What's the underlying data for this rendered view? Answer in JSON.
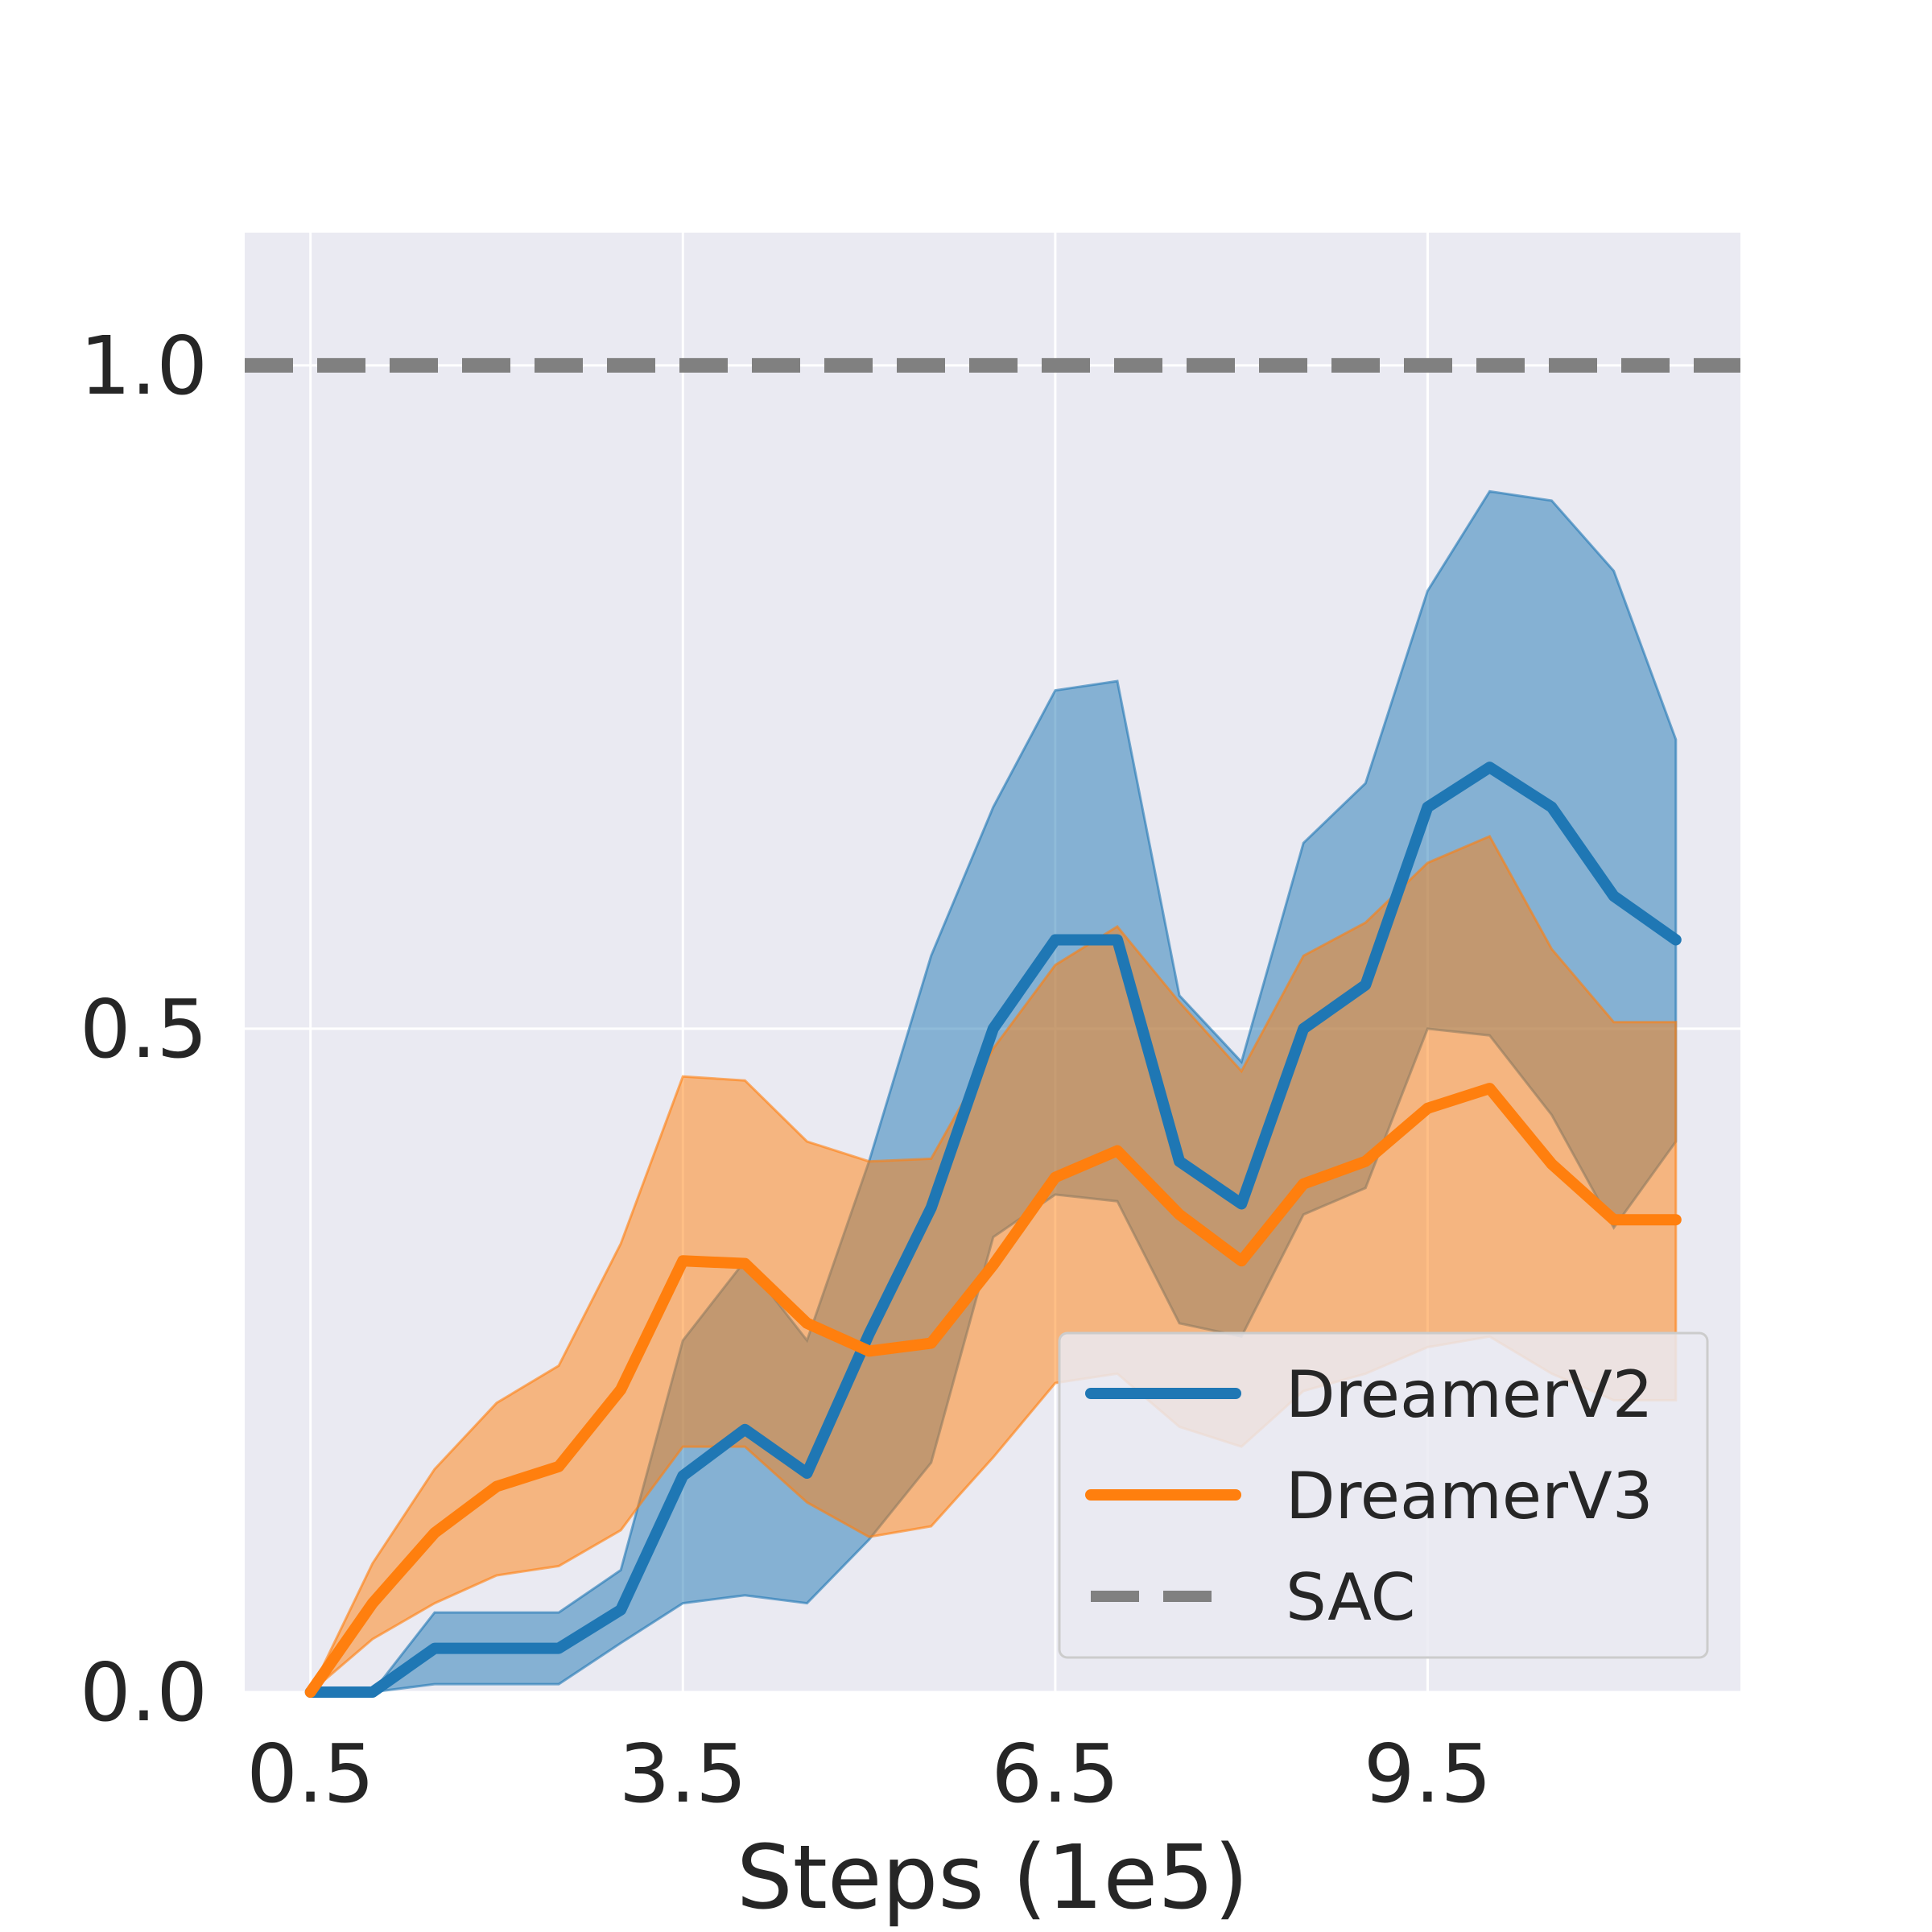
{
  "chart_data": {
    "type": "line",
    "xlabel": "Steps (1e5)",
    "ylabel": "",
    "title": "",
    "xlim": [
      -0.03,
      12.02
    ],
    "ylim": [
      0.0,
      1.1
    ],
    "xticks": [
      0.5,
      3.5,
      6.5,
      9.5
    ],
    "xtick_labels": [
      "0.5",
      "3.5",
      "6.5",
      "9.5"
    ],
    "yticks": [
      0.0,
      0.5,
      1.0
    ],
    "ytick_labels": [
      "0.0",
      "0.5",
      "1.0"
    ],
    "grid": true,
    "legend_position": "lower-right",
    "x": [
      0.5,
      1.0,
      1.5,
      2.0,
      2.5,
      3.0,
      3.5,
      4.0,
      4.5,
      5.0,
      5.5,
      6.0,
      6.5,
      7.0,
      7.5,
      8.0,
      8.5,
      9.0,
      9.5,
      10.0,
      10.5,
      11.0,
      11.5
    ],
    "series": [
      {
        "name": "DreamerV2",
        "color": "#1f77b4",
        "style": "solid",
        "values": [
          0.0,
          0.0,
          0.033,
          0.033,
          0.033,
          0.062,
          0.163,
          0.198,
          0.165,
          0.27,
          0.365,
          0.5,
          0.567,
          0.567,
          0.4,
          0.368,
          0.5,
          0.533,
          0.667,
          0.697,
          0.667,
          0.6,
          0.567
        ],
        "upper": [
          0.0,
          0.0,
          0.06,
          0.06,
          0.06,
          0.092,
          0.265,
          0.325,
          0.265,
          0.4,
          0.555,
          0.667,
          0.755,
          0.762,
          0.525,
          0.475,
          0.64,
          0.685,
          0.83,
          0.905,
          0.898,
          0.845,
          0.718
        ],
        "lower": [
          0.0,
          0.0,
          0.006,
          0.006,
          0.006,
          0.037,
          0.067,
          0.073,
          0.067,
          0.115,
          0.173,
          0.343,
          0.375,
          0.37,
          0.278,
          0.268,
          0.36,
          0.38,
          0.5,
          0.495,
          0.435,
          0.35,
          0.415
        ]
      },
      {
        "name": "DreamerV3",
        "color": "#ff7f0e",
        "style": "solid",
        "values": [
          0.0,
          0.067,
          0.12,
          0.155,
          0.17,
          0.228,
          0.325,
          0.323,
          0.278,
          0.257,
          0.263,
          0.322,
          0.388,
          0.408,
          0.36,
          0.325,
          0.383,
          0.4,
          0.44,
          0.455,
          0.398,
          0.356,
          0.356
        ],
        "upper": [
          0.0,
          0.097,
          0.168,
          0.218,
          0.246,
          0.338,
          0.464,
          0.461,
          0.415,
          0.4,
          0.402,
          0.485,
          0.548,
          0.577,
          0.52,
          0.468,
          0.555,
          0.58,
          0.625,
          0.645,
          0.56,
          0.505,
          0.505
        ],
        "lower": [
          0.0,
          0.04,
          0.067,
          0.088,
          0.095,
          0.122,
          0.185,
          0.185,
          0.143,
          0.117,
          0.125,
          0.177,
          0.233,
          0.24,
          0.2,
          0.185,
          0.227,
          0.24,
          0.26,
          0.268,
          0.24,
          0.22,
          0.22
        ]
      }
    ],
    "reference_lines": [
      {
        "name": "SAC",
        "value": 1.0,
        "color": "#808080",
        "style": "dashed"
      }
    ]
  }
}
